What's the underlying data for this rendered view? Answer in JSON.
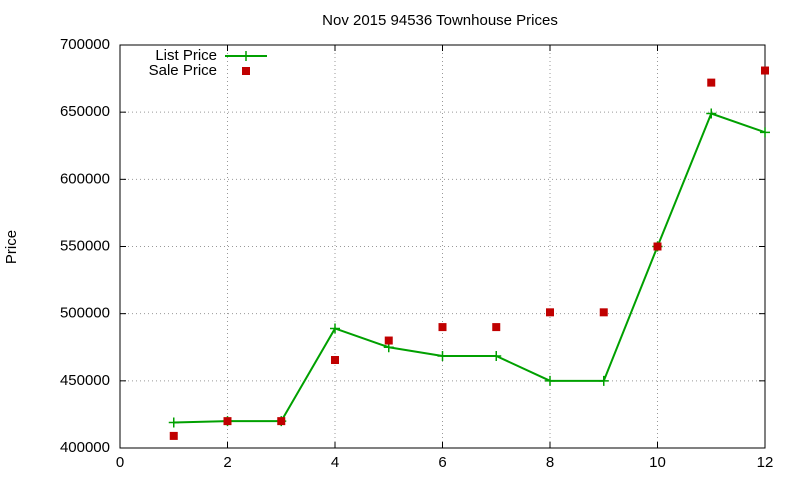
{
  "chart_data": {
    "type": "line",
    "title": "Nov 2015 94536 Townhouse Prices",
    "y_label": "Price",
    "x": [
      1,
      2,
      3,
      4,
      5,
      6,
      7,
      8,
      9,
      10,
      11,
      12
    ],
    "series": [
      {
        "name": "List Price",
        "color": "#00a000",
        "style": "linespoints",
        "values": [
          419000,
          420000,
          420000,
          489000,
          475000,
          468500,
          468500,
          450000,
          450000,
          550000,
          649000,
          635000
        ]
      },
      {
        "name": "Sale Price",
        "color": "#c00000",
        "style": "points",
        "values": [
          409000,
          420000,
          420000,
          465500,
          480000,
          490000,
          490000,
          501000,
          501000,
          550000,
          672000,
          681000
        ]
      }
    ],
    "xlim": [
      0,
      12
    ],
    "xticks": [
      0,
      2,
      4,
      6,
      8,
      10,
      12
    ],
    "ylim": [
      400000,
      700000
    ],
    "yticks": [
      400000,
      450000,
      500000,
      550000,
      600000,
      650000,
      700000
    ],
    "grid": true,
    "legend": "top-left"
  }
}
